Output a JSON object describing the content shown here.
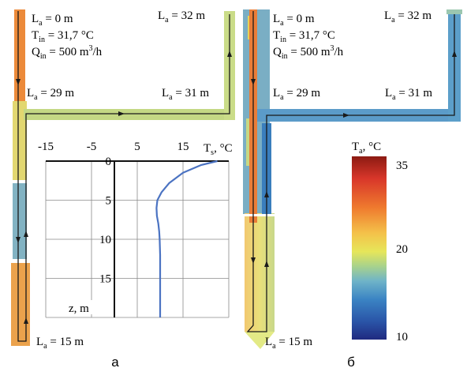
{
  "panel_a": {
    "caption": "a",
    "inlet": {
      "la": "L",
      "la_sub": "a",
      "la_val": " = 0 m",
      "t": "T",
      "t_sub": "in",
      "t_val": " = 31,7 °C",
      "q": "Q",
      "q_sub": "in",
      "q_val": " = 500 m",
      "q_sup": "3",
      "q_tail": "/h"
    },
    "label_32": {
      "main": "L",
      "sub": "a",
      "val": " = 32 m"
    },
    "label_29": {
      "main": "L",
      "sub": "a",
      "val": " = 29 m"
    },
    "label_31": {
      "main": "L",
      "sub": "a",
      "val": " = 31 m"
    },
    "label_15": {
      "main": "L",
      "sub": "a",
      "val": " = 15 m"
    }
  },
  "panel_b": {
    "caption": "б",
    "inlet": {
      "la": "L",
      "la_sub": "a",
      "la_val": " = 0 m",
      "t": "T",
      "t_sub": "in",
      "t_val": " = 31,7 °C",
      "q": "Q",
      "q_sub": "in",
      "q_val": " = 500 m",
      "q_sup": "3",
      "q_tail": "/h"
    },
    "label_32": {
      "main": "L",
      "sub": "a",
      "val": " = 32 m"
    },
    "label_29": {
      "main": "L",
      "sub": "a",
      "val": " = 29 m"
    },
    "label_31": {
      "main": "L",
      "sub": "a",
      "val": " = 31 m"
    },
    "label_15": {
      "main": "L",
      "sub": "a",
      "val": " = 15 m"
    }
  },
  "colorbar": {
    "title_main": "T",
    "title_sub": "a",
    "title_unit": ", °C",
    "ticks": [
      "35",
      "20",
      "10"
    ]
  },
  "chart_data": {
    "type": "line",
    "title": "",
    "xlabel_main": "T",
    "xlabel_sub": "s",
    "xlabel_unit": ", °C",
    "ylabel": "z, m",
    "xlim": [
      -15,
      25
    ],
    "ylim": [
      0,
      20
    ],
    "x_ticks": [
      "-15",
      "-5",
      "5",
      "15"
    ],
    "y_ticks": [
      "0",
      "5",
      "10",
      "15"
    ],
    "y_inverted": true,
    "grid": true,
    "series": [
      {
        "x": [
          22.5,
          19,
          15,
          12,
          10.3,
          9.4,
          9.2,
          9.3,
          9.6,
          9.8,
          9.9,
          10,
          10,
          10,
          10
        ],
        "y": [
          0,
          0.5,
          1.5,
          2.8,
          4,
          5,
          6,
          7,
          8,
          9,
          10,
          12,
          15,
          18,
          20
        ]
      }
    ],
    "line_color": "#4b73c2"
  }
}
